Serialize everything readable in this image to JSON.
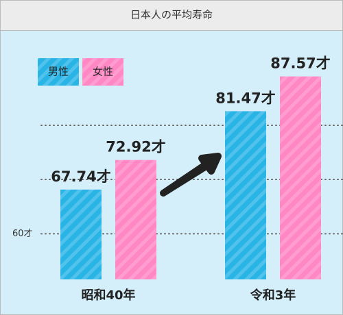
{
  "chart_data": {
    "type": "bar",
    "title": "日本人の平均寿命",
    "categories": [
      "昭和40年",
      "令和3年"
    ],
    "series": [
      {
        "name": "男性",
        "color": "#29b4e6",
        "values": [
          67.74,
          81.47
        ],
        "value_labels": [
          "67.74才",
          "81.47才"
        ]
      },
      {
        "name": "女性",
        "color": "#ff88c4",
        "values": [
          72.92,
          87.57
        ],
        "value_labels": [
          "72.92才",
          "87.57才"
        ]
      }
    ],
    "ylim": [
      52,
      100
    ],
    "yticks": [
      {
        "value": 60,
        "label": "60才"
      }
    ],
    "grid": true,
    "legend": "top-left"
  }
}
